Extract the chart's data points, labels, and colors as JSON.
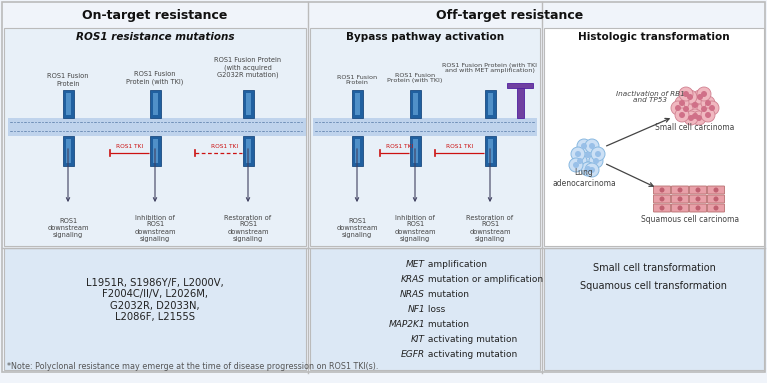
{
  "title_ontarget": "On-target resistance",
  "title_offtarget": "Off-target resistance",
  "panel1_title": "ROS1 resistance mutations",
  "panel2_title": "Bypass pathway activation",
  "panel3_title": "Histologic transformation",
  "panel1_labels": [
    "ROS1 Fusion\nProtein",
    "ROS1 Fusion\nProtein (with TKI)",
    "ROS1 Fusion Protein\n(with acquired\nG2032R mutation)"
  ],
  "panel1_outcomes": [
    "ROS1\ndownstream\nsignaling",
    "Inhibition of\nROS1\ndownstream\nsignaling",
    "Restoration of\nROS1\ndownstream\nsignaling"
  ],
  "panel2_labels": [
    "ROS1 Fusion\nProtein",
    "ROS1 Fusion\nProtein (with TKI)",
    "ROS1 Fusion Protein (with TKI\nand with MET amplification)"
  ],
  "panel2_outcomes": [
    "ROS1\ndownstream\nsignaling",
    "Inhibition of\nROS1\ndownstream\nsignaling",
    "Restoration of\nROS1\ndownstream\nsignaling"
  ],
  "panel1_mutations": "L1951R, S1986Y/F, L2000V,\nF2004C/II/V, L2026M,\nG2032R, D2033N,\nL2086F, L2155S",
  "panel2_mutations_italic": [
    "MET",
    "KRAS",
    "NRAS",
    "NF1",
    "MAP2K1",
    "KIT",
    "EGFR"
  ],
  "panel2_mutations_rest": [
    " amplification",
    " mutation or amplification",
    " mutation",
    " loss",
    " mutation",
    " activating mutation",
    " activating mutation"
  ],
  "panel3_mutations": [
    "Small cell transformation",
    "Squamous cell transformation"
  ],
  "panel3_label_inactivation": "Inactivation of RB1\nand TP53",
  "panel3_label_lung": "Lung\nadenocarcinoma",
  "panel3_label_small": "Small cell carcinoma",
  "panel3_label_squamous": "Squamous cell carcinoma",
  "footnote": "*Note: Polyclonal resistance may emerge at the time of disease progression on ROS1 TKI(s).",
  "outer_bg": "#f0f4fa",
  "panel_upper_bg": "#e8f0f8",
  "panel_lower_bg": "#dce8f5",
  "panel3_upper_bg": "#ffffff",
  "border_color": "#bbbbbb",
  "blue_dark": "#2060a0",
  "blue_mid": "#4a80c0",
  "blue_light": "#6aa0d8",
  "membrane_bg": "#b8ceea",
  "membrane_dot": "#7090b8",
  "red_color": "#cc1111",
  "purple_color": "#7040a0",
  "arrow_color": "#404060",
  "text_dark": "#222222",
  "text_mid": "#444444"
}
